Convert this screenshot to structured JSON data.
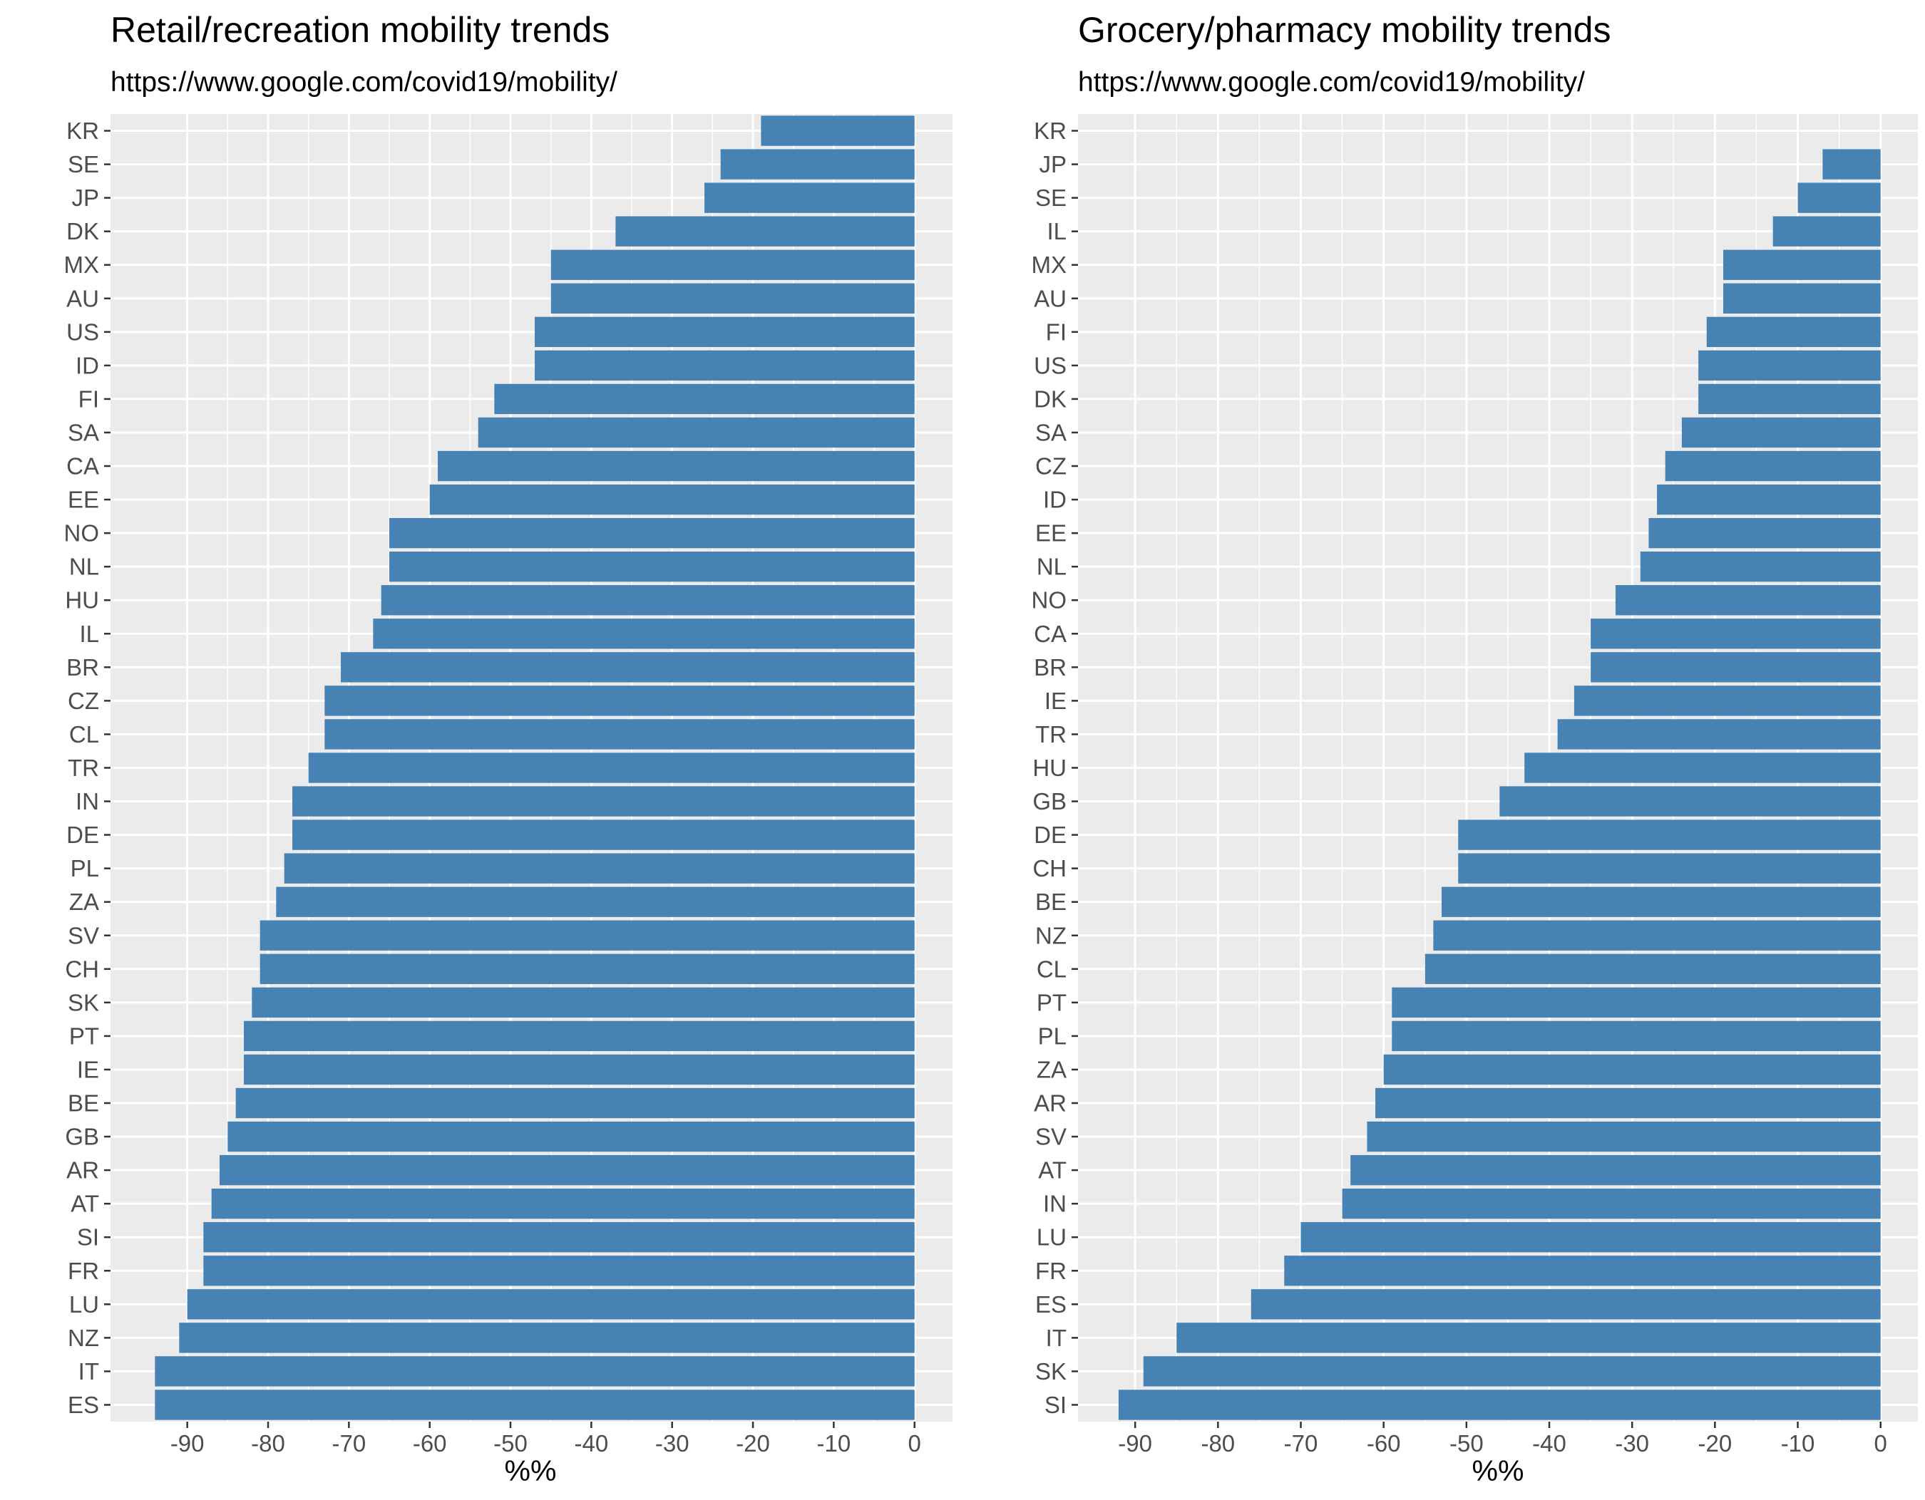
{
  "colors": {
    "bar": "#4682b4",
    "panel": "#ebebeb",
    "grid": "#ffffff",
    "tick": "#333333"
  },
  "chart_data": [
    {
      "type": "bar",
      "orientation": "horizontal",
      "title": "Retail/recreation mobility trends",
      "subtitle": "https://www.google.com/covid19/mobility/",
      "xlabel": "%%",
      "ylabel": "",
      "xlim": [
        -99.5,
        4.7
      ],
      "xticks": [
        -90,
        -80,
        -70,
        -60,
        -50,
        -40,
        -30,
        -20,
        -10,
        0
      ],
      "grid": true,
      "legend": "none",
      "categories": [
        "KR",
        "SE",
        "JP",
        "DK",
        "MX",
        "AU",
        "US",
        "ID",
        "FI",
        "SA",
        "CA",
        "EE",
        "NO",
        "NL",
        "HU",
        "IL",
        "BR",
        "CZ",
        "CL",
        "TR",
        "IN",
        "DE",
        "PL",
        "ZA",
        "SV",
        "CH",
        "SK",
        "PT",
        "IE",
        "BE",
        "GB",
        "AR",
        "AT",
        "SI",
        "FR",
        "LU",
        "NZ",
        "IT",
        "ES"
      ],
      "values": [
        -19,
        -24,
        -26,
        -37,
        -45,
        -45,
        -47,
        -47,
        -52,
        -54,
        -59,
        -60,
        -65,
        -65,
        -66,
        -67,
        -71,
        -73,
        -73,
        -75,
        -77,
        -77,
        -78,
        -79,
        -81,
        -81,
        -82,
        -83,
        -83,
        -84,
        -85,
        -86,
        -87,
        -88,
        -88,
        -90,
        -91,
        -94,
        -94
      ]
    },
    {
      "type": "bar",
      "orientation": "horizontal",
      "title": "Grocery/pharmacy mobility trends",
      "subtitle": "https://www.google.com/covid19/mobility/",
      "xlabel": "%%",
      "ylabel": "",
      "xlim": [
        -96.9,
        4.5
      ],
      "xticks": [
        -90,
        -80,
        -70,
        -60,
        -50,
        -40,
        -30,
        -20,
        -10,
        0
      ],
      "grid": true,
      "legend": "none",
      "categories": [
        "KR",
        "JP",
        "SE",
        "IL",
        "MX",
        "AU",
        "FI",
        "US",
        "DK",
        "SA",
        "CZ",
        "ID",
        "EE",
        "NL",
        "NO",
        "CA",
        "BR",
        "IE",
        "TR",
        "HU",
        "GB",
        "DE",
        "CH",
        "BE",
        "NZ",
        "CL",
        "PT",
        "PL",
        "ZA",
        "AR",
        "SV",
        "AT",
        "IN",
        "LU",
        "FR",
        "ES",
        "IT",
        "SK",
        "SI"
      ],
      "values": [
        0,
        -7,
        -10,
        -13,
        -19,
        -19,
        -21,
        -22,
        -22,
        -24,
        -26,
        -27,
        -28,
        -29,
        -32,
        -35,
        -35,
        -37,
        -39,
        -43,
        -46,
        -51,
        -51,
        -53,
        -54,
        -55,
        -59,
        -59,
        -60,
        -61,
        -62,
        -64,
        -65,
        -70,
        -72,
        -76,
        -85,
        -89,
        -92
      ]
    }
  ]
}
